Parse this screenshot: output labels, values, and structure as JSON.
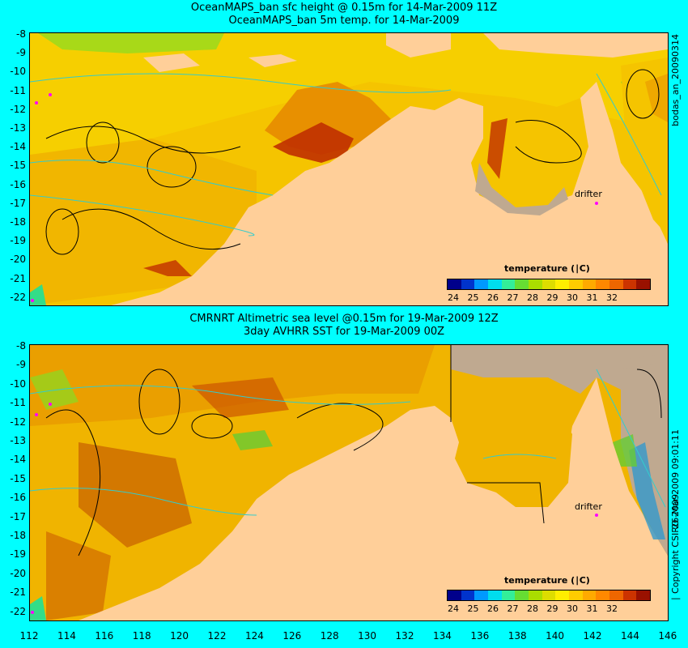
{
  "titles": {
    "top_line1": "OceanMAPS_ban sfc height @ 0.15m for 14-Mar-2009 11Z",
    "top_line2": "OceanMAPS_ban 5m temp. for 14-Mar-2009",
    "bottom_line1": "CMRNRT Altimetric sea level  @0.15m  for 19-Mar-2009 12Z",
    "bottom_line2": "3day AVHRR SST for 19-Mar-2009 00Z"
  },
  "axes": {
    "y_ticks": [
      "-8",
      "-9",
      "-10",
      "-11",
      "-12",
      "-13",
      "-14",
      "-15",
      "-16",
      "-17",
      "-18",
      "-19",
      "-20",
      "-21",
      "-22"
    ],
    "x_ticks": [
      "112",
      "114",
      "116",
      "118",
      "120",
      "122",
      "124",
      "126",
      "128",
      "130",
      "132",
      "134",
      "136",
      "138",
      "140",
      "142",
      "144",
      "146"
    ]
  },
  "side_labels": {
    "top_right": "bodas_an_20090314",
    "bottom_right": "26-Mar-2009 09:01:11",
    "copyright": "∣ Copyright CSIRO 2009"
  },
  "colorbar": {
    "title": "temperature (∣C)",
    "labels": [
      "24",
      "25",
      "26",
      "27",
      "28",
      "29",
      "30",
      "31",
      "32"
    ],
    "colors": [
      "#00008b",
      "#0033cc",
      "#0099ff",
      "#00ddee",
      "#33ee99",
      "#66dd33",
      "#aadd00",
      "#dddd00",
      "#ffee00",
      "#ffcc00",
      "#ffaa00",
      "#ff8800",
      "#ee6600",
      "#cc3300",
      "#991100"
    ]
  },
  "annotations": {
    "drifter_top": "drifter",
    "drifter_bottom": "drifter"
  }
}
